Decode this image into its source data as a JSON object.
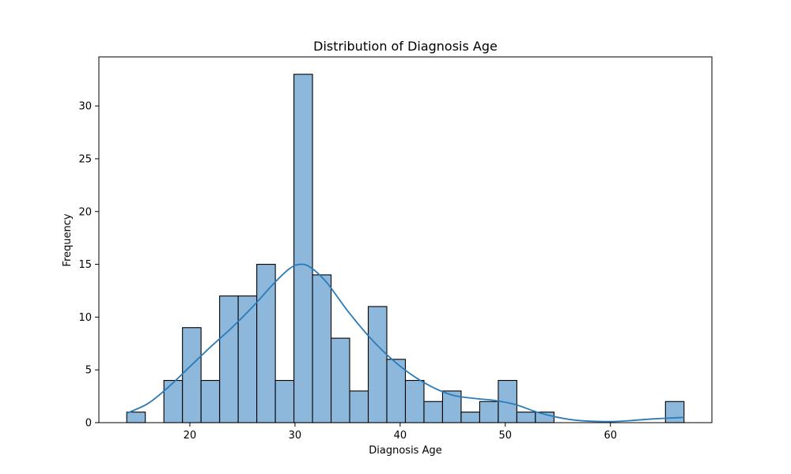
{
  "chart_data": {
    "type": "bar",
    "title": "Distribution of Diagnosis Age",
    "xlabel": "Diagnosis Age",
    "ylabel": "Frequency",
    "xlim": [
      11.35,
      69.65
    ],
    "ylim": [
      0,
      34.65
    ],
    "xticks": [
      20,
      30,
      40,
      50,
      60
    ],
    "yticks": [
      0,
      5,
      10,
      15,
      20,
      25,
      30
    ],
    "bin_width": 1.7667,
    "bins": [
      {
        "start": 14.0,
        "count": 1
      },
      {
        "start": 15.767,
        "count": 0
      },
      {
        "start": 17.533,
        "count": 4
      },
      {
        "start": 19.3,
        "count": 9
      },
      {
        "start": 21.067,
        "count": 4
      },
      {
        "start": 22.833,
        "count": 12
      },
      {
        "start": 24.6,
        "count": 12
      },
      {
        "start": 26.367,
        "count": 15
      },
      {
        "start": 28.133,
        "count": 4
      },
      {
        "start": 29.9,
        "count": 33
      },
      {
        "start": 31.667,
        "count": 14
      },
      {
        "start": 33.433,
        "count": 8
      },
      {
        "start": 35.2,
        "count": 3
      },
      {
        "start": 36.967,
        "count": 11
      },
      {
        "start": 38.733,
        "count": 6
      },
      {
        "start": 40.5,
        "count": 4
      },
      {
        "start": 42.267,
        "count": 2
      },
      {
        "start": 44.033,
        "count": 3
      },
      {
        "start": 45.8,
        "count": 1
      },
      {
        "start": 47.567,
        "count": 2
      },
      {
        "start": 49.333,
        "count": 4
      },
      {
        "start": 51.1,
        "count": 1
      },
      {
        "start": 52.867,
        "count": 1
      },
      {
        "start": 54.633,
        "count": 0
      },
      {
        "start": 56.4,
        "count": 0
      },
      {
        "start": 58.167,
        "count": 0
      },
      {
        "start": 59.933,
        "count": 0
      },
      {
        "start": 61.7,
        "count": 0
      },
      {
        "start": 63.467,
        "count": 0
      },
      {
        "start": 65.233,
        "count": 2
      }
    ],
    "kde": [
      [
        14,
        0.9
      ],
      [
        16,
        1.8
      ],
      [
        18,
        3.4
      ],
      [
        20,
        5.3
      ],
      [
        22,
        7.2
      ],
      [
        24,
        9.0
      ],
      [
        26,
        11.0
      ],
      [
        28,
        13.2
      ],
      [
        29.5,
        14.6
      ],
      [
        30.5,
        15.0
      ],
      [
        31.5,
        14.7
      ],
      [
        33,
        13.3
      ],
      [
        35,
        10.6
      ],
      [
        37,
        8.2
      ],
      [
        39,
        6.2
      ],
      [
        41,
        4.6
      ],
      [
        43,
        3.4
      ],
      [
        45,
        2.6
      ],
      [
        47,
        2.3
      ],
      [
        49,
        2.1
      ],
      [
        51,
        1.7
      ],
      [
        53,
        1.0
      ],
      [
        55,
        0.5
      ],
      [
        57,
        0.2
      ],
      [
        60,
        0.1
      ],
      [
        62,
        0.2
      ],
      [
        64,
        0.35
      ],
      [
        67,
        0.5
      ]
    ],
    "colors": {
      "bar_fill": "#8db8db",
      "bar_edge": "#000000",
      "kde_line": "#2b7bb9"
    },
    "grid": false,
    "legend": "none"
  }
}
